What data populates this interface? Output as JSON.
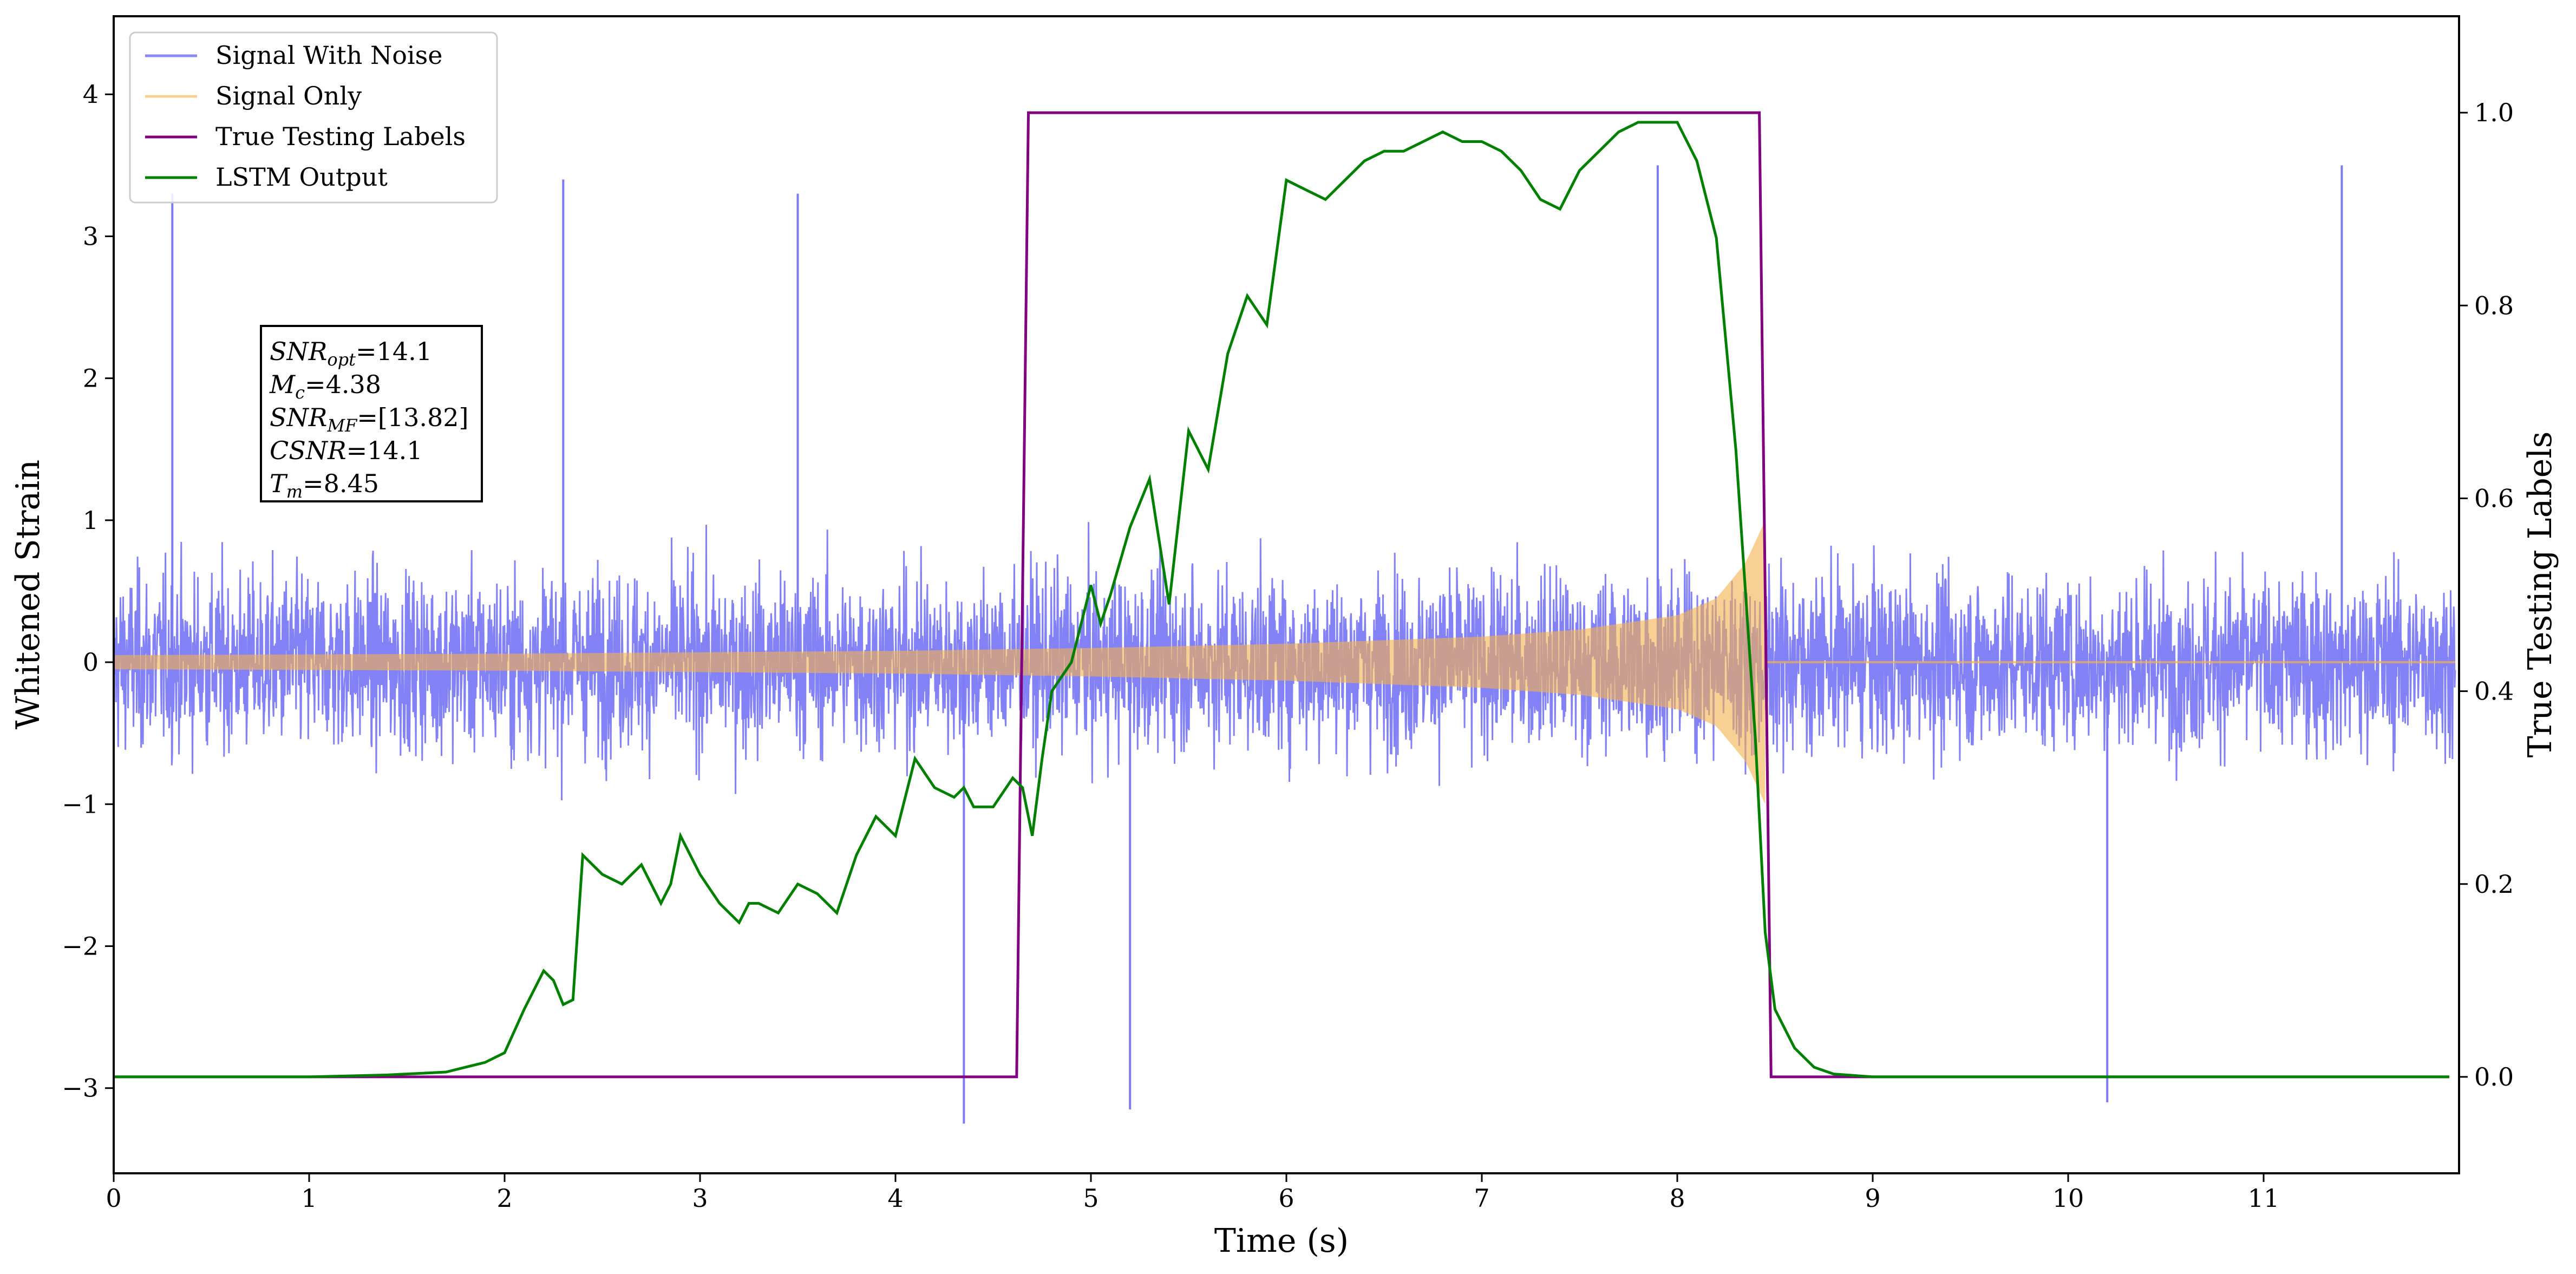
{
  "chart_data": {
    "type": "line",
    "title": "",
    "xlabel": "Time (s)",
    "ylabel": "Whitened Strain",
    "y2label": "True Testing Labels",
    "xlim": [
      0,
      12
    ],
    "ylim": [
      -3.6,
      4.55
    ],
    "y2lim": [
      -0.1,
      1.1
    ],
    "xticks": [
      "0",
      "1",
      "2",
      "3",
      "4",
      "5",
      "6",
      "7",
      "8",
      "9",
      "10",
      "11"
    ],
    "yticks": [
      "−3",
      "−2",
      "−1",
      "0",
      "1",
      "2",
      "3",
      "4"
    ],
    "y2ticks": [
      "0.0",
      "0.2",
      "0.4",
      "0.6",
      "0.8",
      "1.0"
    ],
    "legend_position": "upper-left",
    "grid": false,
    "colors": {
      "signal_with_noise": "#7b7bf6",
      "signal_only": "#f5b14c",
      "true_labels": "#800080",
      "lstm_output": "#008000"
    },
    "series": [
      {
        "name": "Signal With Noise",
        "axis": "left",
        "description_values": {
          "band": [
            -1.3,
            1.3
          ],
          "peaks": [
            [
              0.3,
              3.3
            ],
            [
              2.3,
              3.4
            ],
            [
              3.5,
              3.3
            ],
            [
              4.35,
              -3.25
            ],
            [
              5.2,
              -3.15
            ],
            [
              7.9,
              3.5
            ],
            [
              10.2,
              -3.1
            ],
            [
              11.4,
              3.5
            ]
          ]
        }
      },
      {
        "name": "Signal Only",
        "axis": "left",
        "envelope": {
          "x": [
            0,
            1,
            2,
            3,
            4,
            5,
            6,
            7,
            7.5,
            8,
            8.2,
            8.35,
            8.45
          ],
          "amp": [
            0.05,
            0.055,
            0.06,
            0.07,
            0.08,
            0.1,
            0.13,
            0.18,
            0.23,
            0.33,
            0.45,
            0.7,
            1.0
          ]
        },
        "after_merger": 0.0
      },
      {
        "name": "True Testing Labels",
        "axis": "right",
        "x": [
          0,
          4.62,
          4.68,
          8.42,
          8.48,
          11.95
        ],
        "values": [
          0,
          0,
          1,
          1,
          0,
          0
        ]
      },
      {
        "name": "LSTM Output",
        "axis": "right",
        "x": [
          0,
          0.5,
          1.0,
          1.4,
          1.7,
          1.8,
          1.9,
          2.0,
          2.1,
          2.2,
          2.25,
          2.3,
          2.35,
          2.4,
          2.5,
          2.6,
          2.7,
          2.8,
          2.85,
          2.9,
          3.0,
          3.1,
          3.2,
          3.25,
          3.3,
          3.4,
          3.5,
          3.6,
          3.7,
          3.8,
          3.9,
          4.0,
          4.1,
          4.2,
          4.3,
          4.35,
          4.4,
          4.5,
          4.6,
          4.65,
          4.7,
          4.75,
          4.8,
          4.9,
          5.0,
          5.05,
          5.1,
          5.2,
          5.3,
          5.4,
          5.5,
          5.6,
          5.7,
          5.8,
          5.9,
          6.0,
          6.1,
          6.2,
          6.3,
          6.4,
          6.5,
          6.6,
          6.7,
          6.8,
          6.9,
          7.0,
          7.1,
          7.2,
          7.3,
          7.4,
          7.5,
          7.6,
          7.7,
          7.8,
          7.9,
          8.0,
          8.1,
          8.2,
          8.3,
          8.4,
          8.45,
          8.5,
          8.6,
          8.7,
          8.8,
          9.0,
          10.0,
          11.0,
          11.95
        ],
        "values": [
          0.0,
          0.0,
          0.0,
          0.002,
          0.005,
          0.01,
          0.015,
          0.025,
          0.07,
          0.11,
          0.1,
          0.075,
          0.08,
          0.23,
          0.21,
          0.2,
          0.22,
          0.18,
          0.2,
          0.25,
          0.21,
          0.18,
          0.16,
          0.18,
          0.18,
          0.17,
          0.2,
          0.19,
          0.17,
          0.23,
          0.27,
          0.25,
          0.33,
          0.3,
          0.29,
          0.3,
          0.28,
          0.28,
          0.31,
          0.3,
          0.25,
          0.33,
          0.4,
          0.43,
          0.51,
          0.47,
          0.5,
          0.57,
          0.62,
          0.49,
          0.67,
          0.63,
          0.75,
          0.81,
          0.78,
          0.93,
          0.92,
          0.91,
          0.93,
          0.95,
          0.96,
          0.96,
          0.97,
          0.98,
          0.97,
          0.97,
          0.96,
          0.94,
          0.91,
          0.9,
          0.94,
          0.96,
          0.98,
          0.99,
          0.99,
          0.99,
          0.95,
          0.87,
          0.65,
          0.35,
          0.15,
          0.07,
          0.03,
          0.01,
          0.003,
          0.0,
          0.0,
          0.0,
          0.0
        ]
      }
    ],
    "annotation": {
      "lines": [
        {
          "name": "SNR",
          "sub": "opt",
          "value": "=14.1"
        },
        {
          "name": "M",
          "sub": "c",
          "value": "=4.38"
        },
        {
          "name": "SNR",
          "sub": "MF",
          "value": "=[13.82]"
        },
        {
          "name": "CSNR",
          "sub": "",
          "value": "=14.1"
        },
        {
          "name": "T",
          "sub": "m",
          "value": "=8.45"
        }
      ]
    }
  }
}
